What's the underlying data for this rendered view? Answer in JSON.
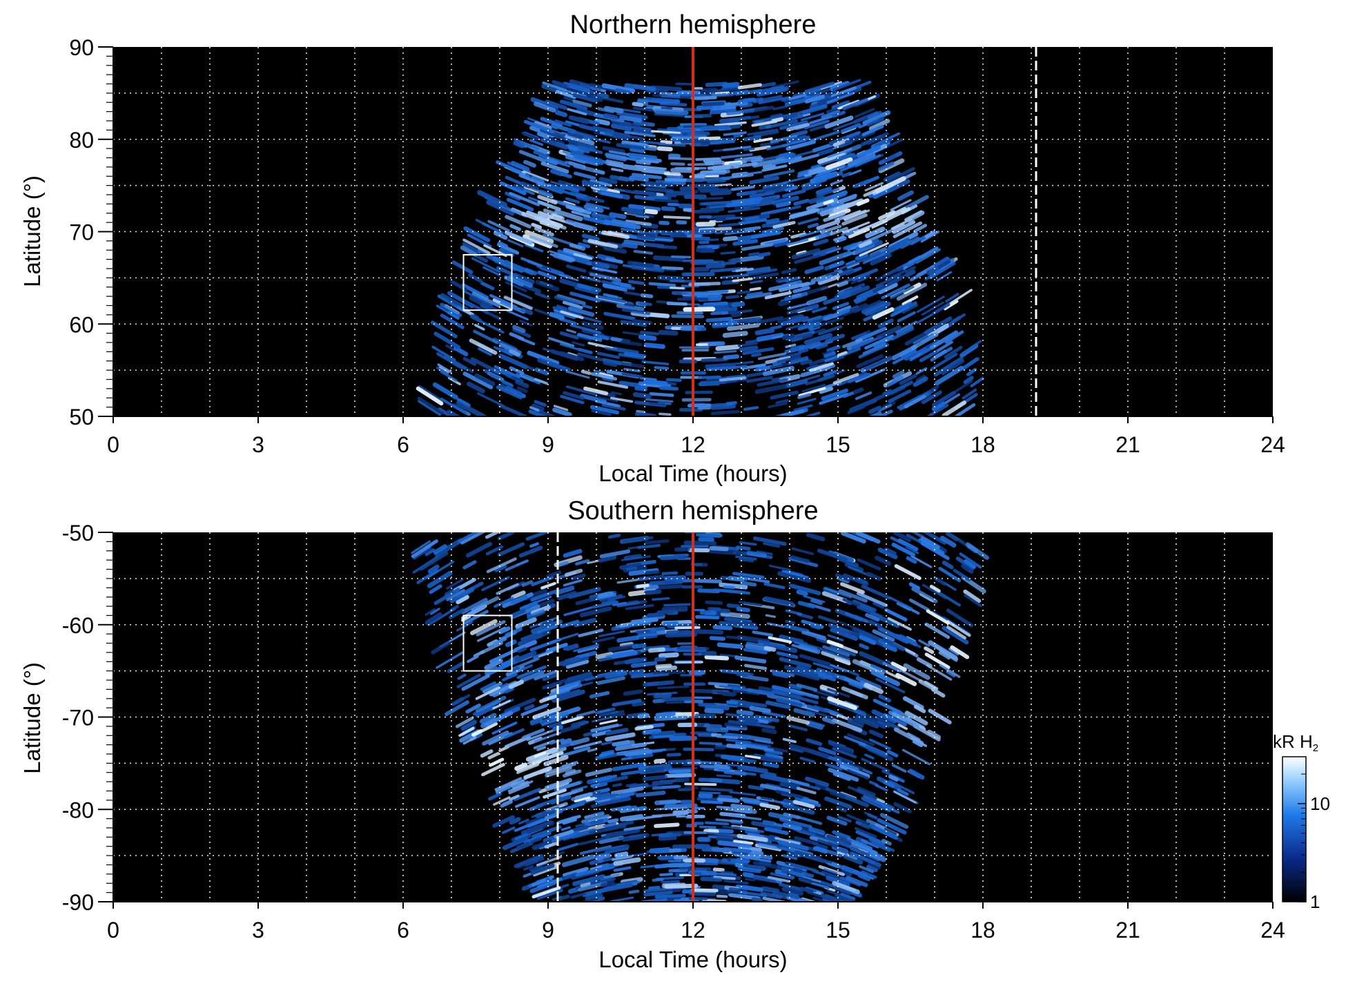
{
  "colors": {
    "background": "#000000",
    "aurora_low": "#061a4f",
    "aurora_mid": "#1d6fe0",
    "aurora_high": "#e6f4ff",
    "noon_line": "#d12f1f",
    "grid": "#ffffff",
    "box": "#ffffff"
  },
  "chart_data": [
    {
      "type": "heatmap",
      "title": "Northern hemisphere",
      "xlabel": "Local Time (hours)",
      "ylabel": "Latitude (°)",
      "xlim": [
        0,
        24
      ],
      "ylim": [
        50,
        90
      ],
      "x_ticks": [
        0,
        3,
        6,
        9,
        12,
        15,
        18,
        21,
        24
      ],
      "x_tick_labels": [
        "0",
        "3",
        "6",
        "9",
        "12",
        "15",
        "18",
        "21",
        "24"
      ],
      "y_ticks": [
        50,
        60,
        70,
        80,
        90
      ],
      "y_tick_labels": [
        "50",
        "60",
        "70",
        "80",
        "90"
      ],
      "grid": true,
      "coverage": {
        "lt_start": 6.5,
        "lt_end": 18.0,
        "lat_min": 50,
        "lat_max": 86
      },
      "noon_line_lt": 12,
      "dashed_line_lt": 19.1,
      "box": {
        "lt_min": 7.25,
        "lt_max": 8.25,
        "lat_min": 61.5,
        "lat_max": 67.5
      },
      "bright_bands": [
        {
          "lt_center": 8.9,
          "lat_center": 71,
          "lt_halfwidth": 1.0,
          "lat_halfwidth": 2.5,
          "level": 0.9
        },
        {
          "lt_center": 15.9,
          "lat_center": 71.5,
          "lt_halfwidth": 1.4,
          "lat_halfwidth": 2.5,
          "level": 0.95
        },
        {
          "lt_center": 12,
          "lat_center": 77,
          "lt_halfwidth": 3.5,
          "lat_halfwidth": 1.5,
          "level": 0.7
        }
      ]
    },
    {
      "type": "heatmap",
      "title": "Southern hemisphere",
      "xlabel": "Local Time (hours)",
      "ylabel": "Latitude (°)",
      "xlim": [
        0,
        24
      ],
      "ylim": [
        -90,
        -50
      ],
      "x_ticks": [
        0,
        3,
        6,
        9,
        12,
        15,
        18,
        21,
        24
      ],
      "x_tick_labels": [
        "0",
        "3",
        "6",
        "9",
        "12",
        "15",
        "18",
        "21",
        "24"
      ],
      "y_ticks": [
        -90,
        -80,
        -70,
        -60,
        -50
      ],
      "y_tick_labels": [
        "-90",
        "-80",
        "-70",
        "-60",
        "-50"
      ],
      "grid": true,
      "coverage": {
        "lt_start": 6.3,
        "lt_end": 18.0,
        "lat_min": -90,
        "lat_max": -50
      },
      "noon_line_lt": 12,
      "dashed_line_lt": 9.2,
      "box": {
        "lt_min": 7.25,
        "lt_max": 8.25,
        "lat_min": -65,
        "lat_max": -59
      },
      "bright_bands": [
        {
          "lt_center": 8.0,
          "lat_center": -75,
          "lt_halfwidth": 2.0,
          "lat_halfwidth": 3.0,
          "level": 1.0
        },
        {
          "lt_center": 16.9,
          "lat_center": -68,
          "lt_halfwidth": 0.6,
          "lat_halfwidth": 9.0,
          "level": 0.85
        },
        {
          "lt_center": 7.7,
          "lat_center": -62,
          "lt_halfwidth": 0.5,
          "lat_halfwidth": 6.0,
          "level": 0.7
        },
        {
          "lt_center": 12,
          "lat_center": -80.5,
          "lt_halfwidth": 2.5,
          "lat_halfwidth": 1.0,
          "level": 0.7
        }
      ]
    }
  ],
  "colorbar": {
    "label_main": "kR H",
    "label_sub": "2",
    "scale": "log",
    "ticks": [
      1,
      10
    ],
    "tick_labels": [
      "1",
      "10"
    ]
  }
}
